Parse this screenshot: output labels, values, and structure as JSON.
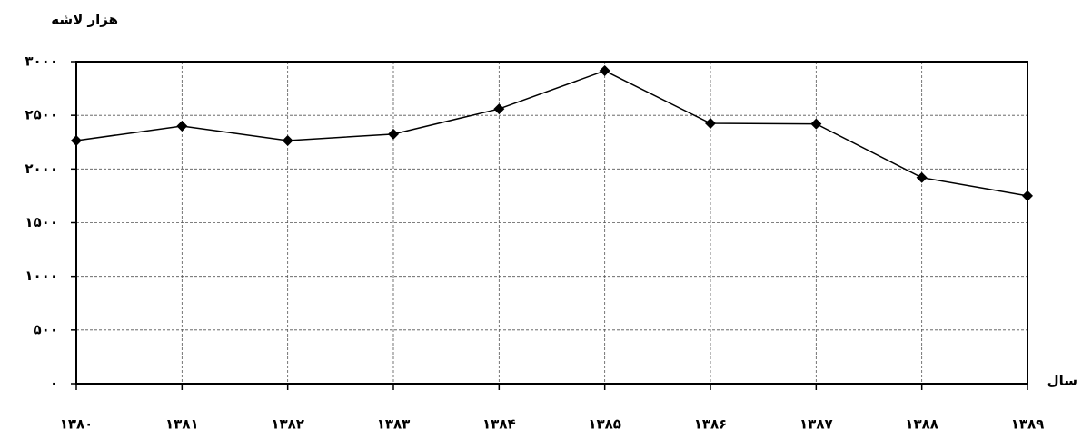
{
  "chart_data": {
    "type": "line",
    "y_label": "هزار لاشه",
    "x_label": "سال",
    "categories": [
      "۱۳۸۰",
      "۱۳۸۱",
      "۱۳۸۲",
      "۱۳۸۳",
      "۱۳۸۴",
      "۱۳۸۵",
      "۱۳۸۶",
      "۱۳۸۷",
      "۱۳۸۸",
      "۱۳۸۹"
    ],
    "values": [
      2265,
      2400,
      2265,
      2325,
      2560,
      2915,
      2425,
      2420,
      1920,
      1750
    ],
    "color": "#000000",
    "ylim": [
      0,
      3000
    ],
    "yticks": [
      {
        "value": 0,
        "label": "۰"
      },
      {
        "value": 500,
        "label": "۵۰۰"
      },
      {
        "value": 1000,
        "label": "۱۰۰۰"
      },
      {
        "value": 1500,
        "label": "۱۵۰۰"
      },
      {
        "value": 2000,
        "label": "۲۰۰۰"
      },
      {
        "value": 2500,
        "label": "۲۵۰۰"
      },
      {
        "value": 3000,
        "label": "۳۰۰۰"
      }
    ],
    "grid": true
  }
}
